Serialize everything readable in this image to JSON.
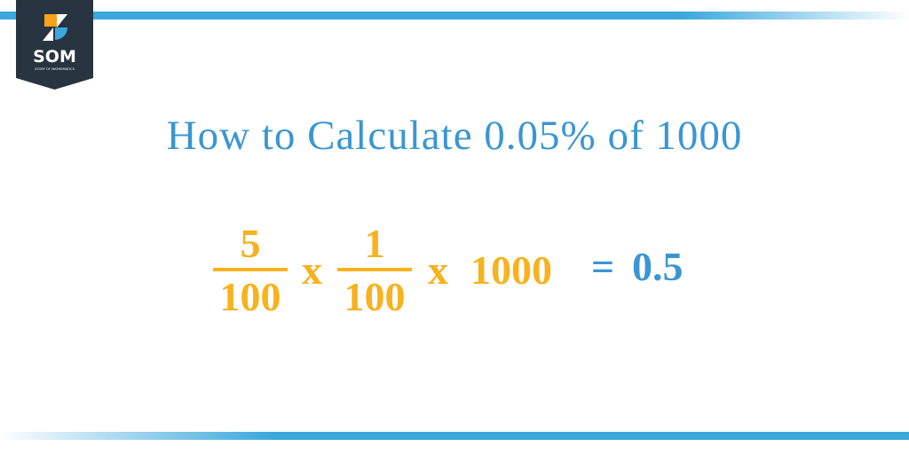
{
  "logo": {
    "text": "SOM",
    "subtitle": "STORY OF MATHEMATICS",
    "colors": {
      "banner": "#283440",
      "orange": "#f7a21b",
      "blue": "#3aa8dd"
    }
  },
  "title": "How to Calculate 0.05% of 1000",
  "equation": {
    "frac1": {
      "num": "5",
      "den": "100"
    },
    "times1": "x",
    "frac2": {
      "num": "1",
      "den": "100"
    },
    "times2": "x",
    "multiplier": "1000",
    "equals": "=",
    "result": "0.5"
  },
  "colors": {
    "accent": "#3a96d2",
    "operand": "#f7b21d"
  }
}
